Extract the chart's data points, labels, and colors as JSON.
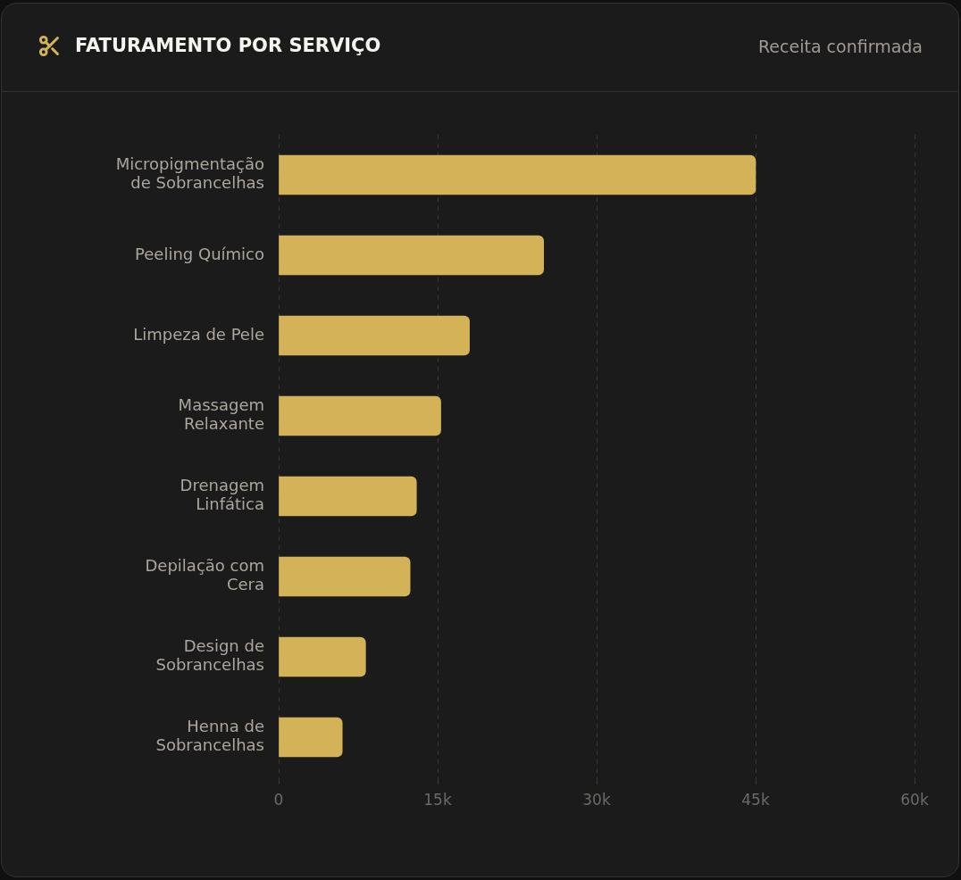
{
  "chart_data": {
    "type": "bar",
    "orientation": "horizontal",
    "title": "FATURAMENTO POR SERVIÇO",
    "subtitle": "Receita confirmada",
    "categories": [
      "Micropigmentação de Sobrancelhas",
      "Peeling Químico",
      "Limpeza de Pele",
      "Massagem Relaxante",
      "Drenagem Linfática",
      "Depilação com Cera",
      "Design de Sobrancelhas",
      "Henna de Sobrancelhas"
    ],
    "values": [
      45000,
      25000,
      18000,
      15300,
      13000,
      12400,
      8200,
      6000
    ],
    "color": "#d4b257",
    "xlim": [
      0,
      60000
    ],
    "xticks": [
      0,
      {
        "value": 15000,
        "label": "15k"
      },
      {
        "value": 30000,
        "label": "30k"
      },
      {
        "value": 45000,
        "label": "45k"
      },
      {
        "value": 60000,
        "label": "60k"
      }
    ],
    "grid": "x"
  }
}
